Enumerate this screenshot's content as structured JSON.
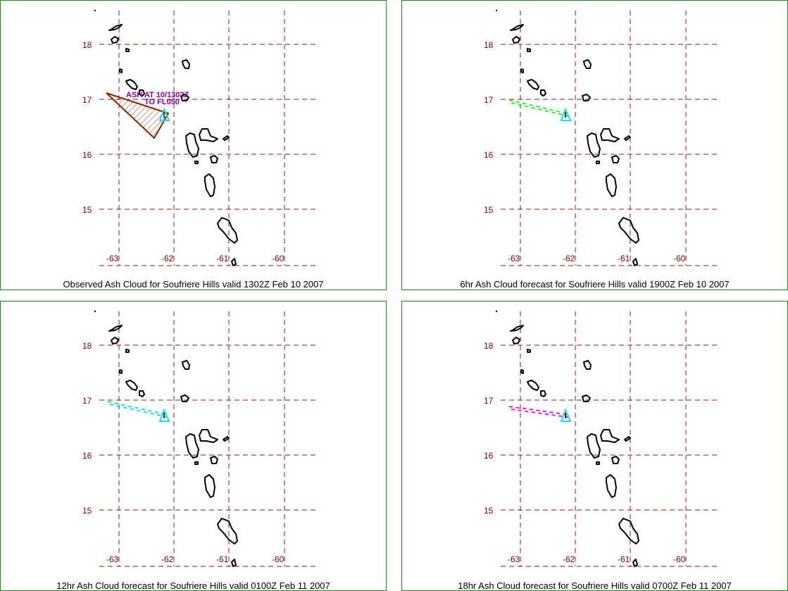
{
  "lat_labels": [
    "18",
    "17",
    "16",
    "15"
  ],
  "lon_labels": [
    "-63",
    "-62",
    "-61",
    "-60"
  ],
  "panels": [
    {
      "caption": "Observed Ash Cloud for Soufriere  Hills valid 1302Z Feb 10 2007",
      "cloud_type": "observed",
      "cloud_color": "#8b2500",
      "annotation_line1": "ASH AT 10/1302Z",
      "annotation_line2": "TO FL050"
    },
    {
      "caption": "6hr Ash Cloud forecast for Soufriere  Hills valid 1900Z Feb 10 2007",
      "cloud_type": "forecast",
      "cloud_color": "#33ee33",
      "annotation_line1": "",
      "annotation_line2": ""
    },
    {
      "caption": "12hr Ash Cloud forecast for Soufriere  Hills valid 0100Z Feb 11 2007",
      "cloud_type": "forecast",
      "cloud_color": "#22dddd",
      "annotation_line1": "",
      "annotation_line2": ""
    },
    {
      "caption": "18hr Ash Cloud forecast for Soufriere  Hills valid 0700Z Feb 11 2007",
      "cloud_type": "forecast",
      "cloud_color": "#dd22dd",
      "annotation_line1": "",
      "annotation_line2": ""
    }
  ],
  "volcano_marker_color": "#22dddd",
  "volcano_icon": "triangle-icon"
}
